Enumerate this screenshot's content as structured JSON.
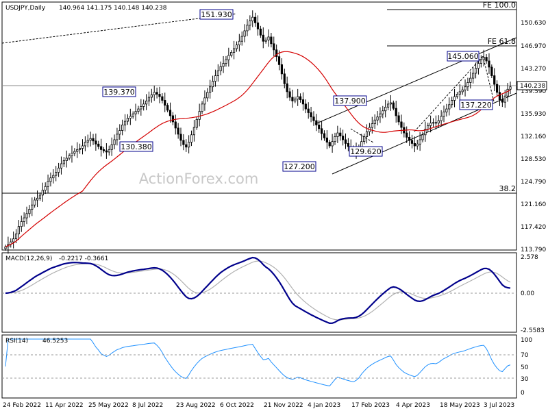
{
  "chart_data": [
    {
      "type": "candlestick",
      "title": "USDJPY,Daily",
      "ohlc_label": "140.964 141.175 140.148 140.238",
      "ohlc": [
        140.964,
        141.175,
        140.148,
        140.238
      ],
      "last_price": "140.238",
      "y_ticks": [
        "150.630",
        "146.970",
        "143.270",
        "139.590",
        "135.930",
        "132.160",
        "128.530",
        "124.790",
        "121.160",
        "117.420",
        "113.790"
      ],
      "x_ticks": [
        "24 Feb 2022",
        "11 Apr 2022",
        "25 May 2022",
        "8 Jul 2022",
        "23 Aug 2022",
        "6 Oct 2022",
        "21 Nov 2022",
        "4 Jan 2023",
        "17 Feb 2023",
        "4 Apr 2023",
        "18 May 2023",
        "3 Jul 2023"
      ],
      "close_series": [
        114.2,
        114.6,
        115.0,
        115.5,
        116.3,
        117.5,
        118.3,
        118.9,
        119.6,
        120.3,
        121.0,
        121.8,
        122.1,
        122.6,
        123.4,
        124.0,
        124.8,
        125.4,
        125.8,
        126.3,
        127.0,
        127.7,
        128.2,
        128.6,
        129.0,
        129.4,
        129.7,
        130.0,
        130.2,
        130.6,
        131.2,
        131.5,
        131.8,
        131.4,
        130.9,
        130.5,
        130.0,
        129.8,
        129.6,
        130.0,
        130.8,
        131.6,
        132.5,
        133.1,
        134.0,
        134.6,
        135.1,
        135.4,
        135.8,
        136.2,
        136.6,
        137.0,
        137.4,
        137.9,
        138.5,
        138.9,
        139.3,
        139.0,
        138.6,
        138.0,
        137.2,
        136.4,
        135.5,
        134.5,
        133.5,
        132.5,
        131.5,
        130.8,
        130.4,
        131.2,
        132.4,
        133.6,
        134.9,
        136.2,
        137.4,
        138.4,
        139.3,
        140.2,
        141.1,
        142.0,
        142.8,
        143.5,
        144.0,
        144.6,
        145.3,
        145.8,
        146.4,
        147.0,
        147.6,
        148.4,
        149.3,
        150.2,
        150.9,
        151.5,
        150.6,
        149.6,
        148.6,
        147.6,
        147.8,
        148.3,
        147.2,
        146.2,
        145.1,
        143.8,
        142.3,
        140.7,
        139.4,
        138.5,
        137.9,
        138.2,
        138.6,
        138.1,
        137.4,
        136.6,
        136.0,
        135.3,
        134.7,
        134.0,
        133.4,
        132.6,
        131.9,
        131.2,
        130.6,
        131.3,
        132.1,
        132.7,
        132.2,
        131.6,
        131.0,
        130.5,
        130.0,
        129.6,
        129.9,
        130.4,
        131.3,
        132.1,
        132.9,
        133.6,
        134.2,
        134.8,
        135.3,
        135.8,
        136.3,
        136.9,
        137.4,
        137.6,
        136.7,
        135.5,
        134.5,
        133.6,
        132.7,
        132.0,
        131.5,
        131.0,
        130.6,
        130.9,
        131.6,
        132.4,
        133.3,
        133.9,
        134.3,
        134.4,
        134.3,
        134.7,
        135.4,
        136.1,
        136.6,
        137.3,
        138.0,
        138.6,
        139.0,
        139.4,
        139.7,
        140.2,
        140.9,
        141.6,
        142.4,
        143.2,
        144.0,
        144.6,
        145.0,
        144.4,
        143.4,
        142.0,
        140.6,
        139.3,
        138.1,
        137.7,
        138.7,
        139.8,
        140.2
      ]
    },
    {
      "type": "line",
      "title": "MACD(12,26,9)",
      "values_label": "-0.2217 -0.3661",
      "y_ticks": [
        "2.578",
        "0.00",
        "-2.5583"
      ],
      "ylim": [
        -2.8,
        2.8
      ]
    },
    {
      "type": "line",
      "title": "RSI(14)",
      "values_label": "46.5253",
      "y_ticks": [
        "100",
        "70",
        "50",
        "30",
        "0"
      ],
      "ylim": [
        0,
        100
      ]
    }
  ],
  "annotations": {
    "price_labels": [
      "151.930",
      "145.060",
      "139.370",
      "137.900",
      "137.220",
      "130.380",
      "129.620",
      "127.200"
    ],
    "fib_labels": [
      "FE 100.0",
      "FE 61.8",
      "38.2"
    ]
  },
  "watermark": "ActionForex.com",
  "colors": {
    "up_candle": "#ffffff",
    "down_candle": "#000000",
    "sma": "#d40000",
    "macd_line": "#00008b",
    "signal_line": "#b0b0b0",
    "rsi_line": "#1e90ff",
    "label_border": "#00008b"
  }
}
